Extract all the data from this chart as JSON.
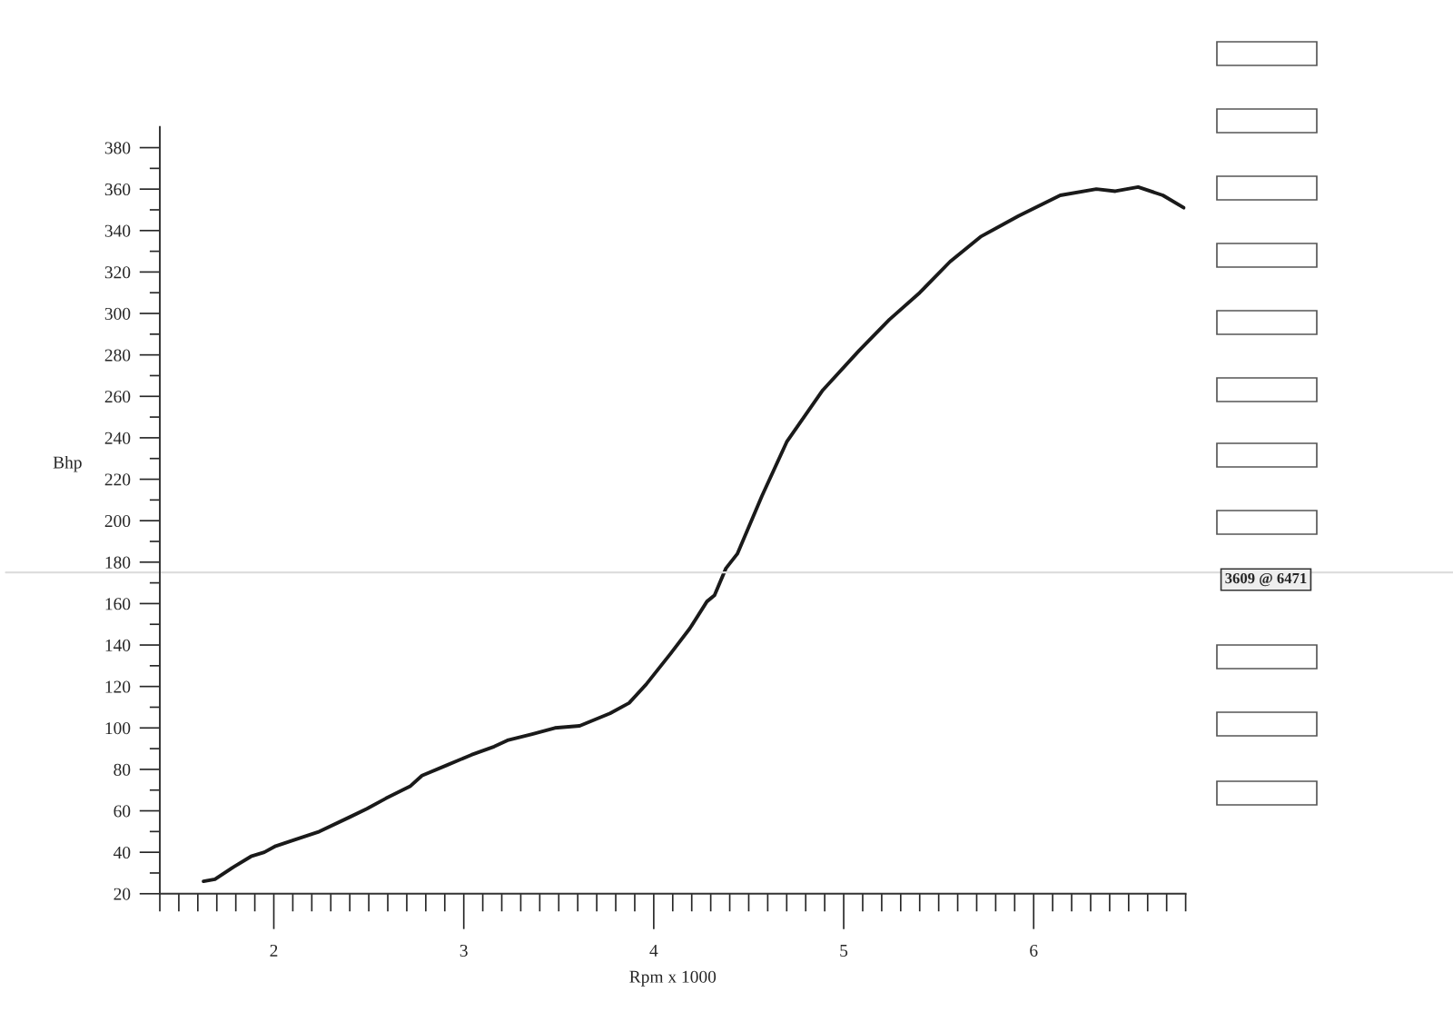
{
  "chart_data": {
    "type": "line",
    "xlabel": "Rpm x 1000",
    "ylabel": "Bhp",
    "x": [
      1.63,
      1.69,
      1.79,
      1.88,
      1.95,
      2.01,
      2.11,
      2.24,
      2.4,
      2.49,
      2.59,
      2.72,
      2.78,
      2.91,
      3.04,
      3.16,
      3.23,
      3.36,
      3.48,
      3.61,
      3.77,
      3.87,
      3.96,
      4.09,
      4.19,
      4.28,
      4.32,
      4.38,
      4.44,
      4.57,
      4.7,
      4.89,
      5.08,
      5.24,
      5.4,
      5.56,
      5.72,
      5.92,
      6.14,
      6.33,
      6.43,
      6.55,
      6.68,
      6.79
    ],
    "series": [
      {
        "color": "#1a1a1a",
        "values": [
          26,
          27,
          33,
          38,
          40,
          43,
          46,
          50,
          57,
          61,
          66,
          72,
          77,
          82,
          87,
          91,
          94,
          97,
          100,
          101,
          107,
          112,
          121,
          136,
          148,
          161,
          164,
          177,
          184,
          212,
          238,
          263,
          282,
          297,
          310,
          325,
          337,
          347,
          357,
          360,
          359,
          361,
          357,
          351
        ]
      }
    ],
    "xlim": [
      1.4,
      6.8
    ],
    "ylim": [
      20,
      390
    ],
    "xticks": [
      {
        "value": 1.4,
        "label": null
      },
      {
        "value": 1.5,
        "label": null
      },
      {
        "value": 1.6,
        "label": null
      },
      {
        "value": 1.7,
        "label": null
      },
      {
        "value": 1.8,
        "label": null
      },
      {
        "value": 1.9,
        "label": null
      },
      2,
      {
        "value": 2.1,
        "label": null
      },
      {
        "value": 2.2,
        "label": null
      },
      {
        "value": 2.3,
        "label": null
      },
      {
        "value": 2.4,
        "label": null
      },
      {
        "value": 2.5,
        "label": null
      },
      {
        "value": 2.6,
        "label": null
      },
      {
        "value": 2.7,
        "label": null
      },
      {
        "value": 2.8,
        "label": null
      },
      {
        "value": 2.9,
        "label": null
      },
      3,
      {
        "value": 3.1,
        "label": null
      },
      {
        "value": 3.2,
        "label": null
      },
      {
        "value": 3.3,
        "label": null
      },
      {
        "value": 3.4,
        "label": null
      },
      {
        "value": 3.5,
        "label": null
      },
      {
        "value": 3.6,
        "label": null
      },
      {
        "value": 3.7,
        "label": null
      },
      {
        "value": 3.8,
        "label": null
      },
      {
        "value": 3.9,
        "label": null
      },
      4,
      {
        "value": 4.1,
        "label": null
      },
      {
        "value": 4.2,
        "label": null
      },
      {
        "value": 4.3,
        "label": null
      },
      {
        "value": 4.4,
        "label": null
      },
      {
        "value": 4.5,
        "label": null
      },
      {
        "value": 4.6,
        "label": null
      },
      {
        "value": 4.7,
        "label": null
      },
      {
        "value": 4.8,
        "label": null
      },
      {
        "value": 4.9,
        "label": null
      },
      5,
      {
        "value": 5.1,
        "label": null
      },
      {
        "value": 5.2,
        "label": null
      },
      {
        "value": 5.3,
        "label": null
      },
      {
        "value": 5.4,
        "label": null
      },
      {
        "value": 5.5,
        "label": null
      },
      {
        "value": 5.6,
        "label": null
      },
      {
        "value": 5.7,
        "label": null
      },
      {
        "value": 5.8,
        "label": null
      },
      {
        "value": 5.9,
        "label": null
      },
      6,
      {
        "value": 6.1,
        "label": null
      },
      {
        "value": 6.2,
        "label": null
      },
      {
        "value": 6.3,
        "label": null
      },
      {
        "value": 6.4,
        "label": null
      },
      {
        "value": 6.5,
        "label": null
      },
      {
        "value": 6.6,
        "label": null
      },
      {
        "value": 6.7,
        "label": null
      },
      {
        "value": 6.8,
        "label": null
      }
    ],
    "yticks": [
      20,
      {
        "value": 30,
        "label": null
      },
      40,
      {
        "value": 50,
        "label": null
      },
      60,
      {
        "value": 70,
        "label": null
      },
      80,
      {
        "value": 90,
        "label": null
      },
      100,
      {
        "value": 110,
        "label": null
      },
      120,
      {
        "value": 130,
        "label": null
      },
      140,
      {
        "value": 150,
        "label": null
      },
      160,
      {
        "value": 170,
        "label": null
      },
      180,
      {
        "value": 190,
        "label": null
      },
      200,
      {
        "value": 210,
        "label": null
      },
      220,
      {
        "value": 230,
        "label": null
      },
      240,
      {
        "value": 250,
        "label": null
      },
      260,
      {
        "value": 270,
        "label": null
      },
      280,
      {
        "value": 290,
        "label": null
      },
      300,
      {
        "value": 310,
        "label": null
      },
      320,
      {
        "value": 330,
        "label": null
      },
      340,
      {
        "value": 350,
        "label": null
      },
      360,
      {
        "value": 370,
        "label": null
      },
      380
    ],
    "ref_lines": [
      {
        "axis": "y",
        "value": 175,
        "color": "#dddddd"
      }
    ],
    "annotations": [
      "3609 @ 6471"
    ],
    "grid": false,
    "marker": "none",
    "line_style": "solid",
    "legend": false
  }
}
